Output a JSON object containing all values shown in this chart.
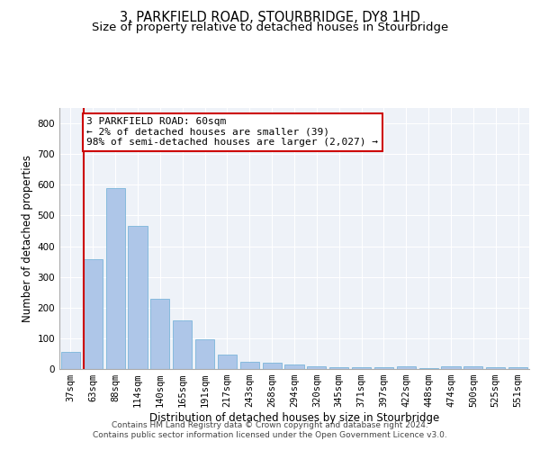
{
  "title": "3, PARKFIELD ROAD, STOURBRIDGE, DY8 1HD",
  "subtitle": "Size of property relative to detached houses in Stourbridge",
  "xlabel": "Distribution of detached houses by size in Stourbridge",
  "ylabel": "Number of detached properties",
  "footnote1": "Contains HM Land Registry data © Crown copyright and database right 2024.",
  "footnote2": "Contains public sector information licensed under the Open Government Licence v3.0.",
  "categories": [
    "37sqm",
    "63sqm",
    "88sqm",
    "114sqm",
    "140sqm",
    "165sqm",
    "191sqm",
    "217sqm",
    "243sqm",
    "268sqm",
    "294sqm",
    "320sqm",
    "345sqm",
    "371sqm",
    "397sqm",
    "422sqm",
    "448sqm",
    "474sqm",
    "500sqm",
    "525sqm",
    "551sqm"
  ],
  "values": [
    55,
    357,
    590,
    465,
    230,
    158,
    96,
    46,
    23,
    20,
    15,
    10,
    5,
    5,
    5,
    8,
    3,
    10,
    8,
    5,
    7
  ],
  "bar_color": "#aec6e8",
  "bar_edge_color": "#6baed6",
  "highlight_bar_index": 1,
  "highlight_line_color": "#cc0000",
  "annotation_line1": "3 PARKFIELD ROAD: 60sqm",
  "annotation_line2": "← 2% of detached houses are smaller (39)",
  "annotation_line3": "98% of semi-detached houses are larger (2,027) →",
  "annotation_box_color": "white",
  "annotation_box_edge_color": "#cc0000",
  "ylim": [
    0,
    850
  ],
  "yticks": [
    0,
    100,
    200,
    300,
    400,
    500,
    600,
    700,
    800
  ],
  "background_color": "#eef2f8",
  "grid_color": "white",
  "title_fontsize": 10.5,
  "subtitle_fontsize": 9.5,
  "ylabel_fontsize": 8.5,
  "xlabel_fontsize": 8.5,
  "tick_fontsize": 7.5,
  "annotation_fontsize": 8,
  "footnote_fontsize": 6.5
}
